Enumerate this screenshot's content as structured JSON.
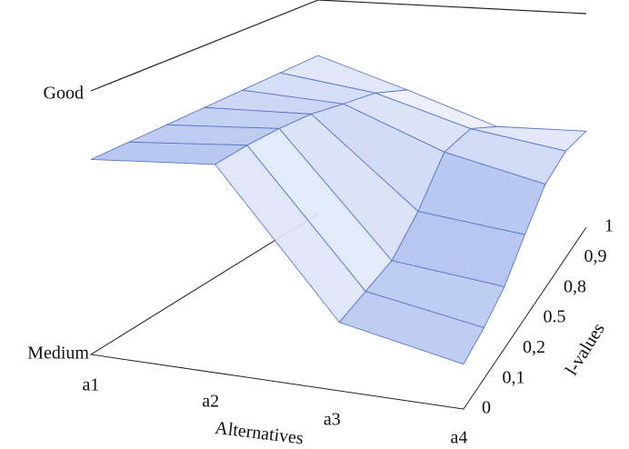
{
  "chart_data": {
    "type": "surface",
    "x_label": "Alternatives",
    "y_label": "l-values",
    "categories": [
      "a1",
      "a2",
      "a3",
      "a4"
    ],
    "y_categories": [
      "0",
      "0,1",
      "0,2",
      "0.5",
      "0,8",
      "0,9",
      "1"
    ],
    "z": [
      [
        0.74,
        0.74,
        0.74,
        0.74,
        0.74,
        0.74,
        0.74
      ],
      [
        0.79,
        0.79,
        0.78,
        0.76,
        0.72,
        0.68,
        0.6
      ],
      [
        0.26,
        0.28,
        0.3,
        0.4,
        0.55,
        0.55,
        0.45
      ],
      [
        0.17,
        0.2,
        0.25,
        0.35,
        0.45,
        0.48,
        0.45
      ]
    ],
    "zlim": [
      0,
      1
    ],
    "zticks": [
      {
        "value": 0,
        "label": "Medium"
      },
      {
        "value": 1,
        "label": "Good"
      }
    ],
    "color": "#7b98e4",
    "edge_color": "#5a78cc"
  }
}
